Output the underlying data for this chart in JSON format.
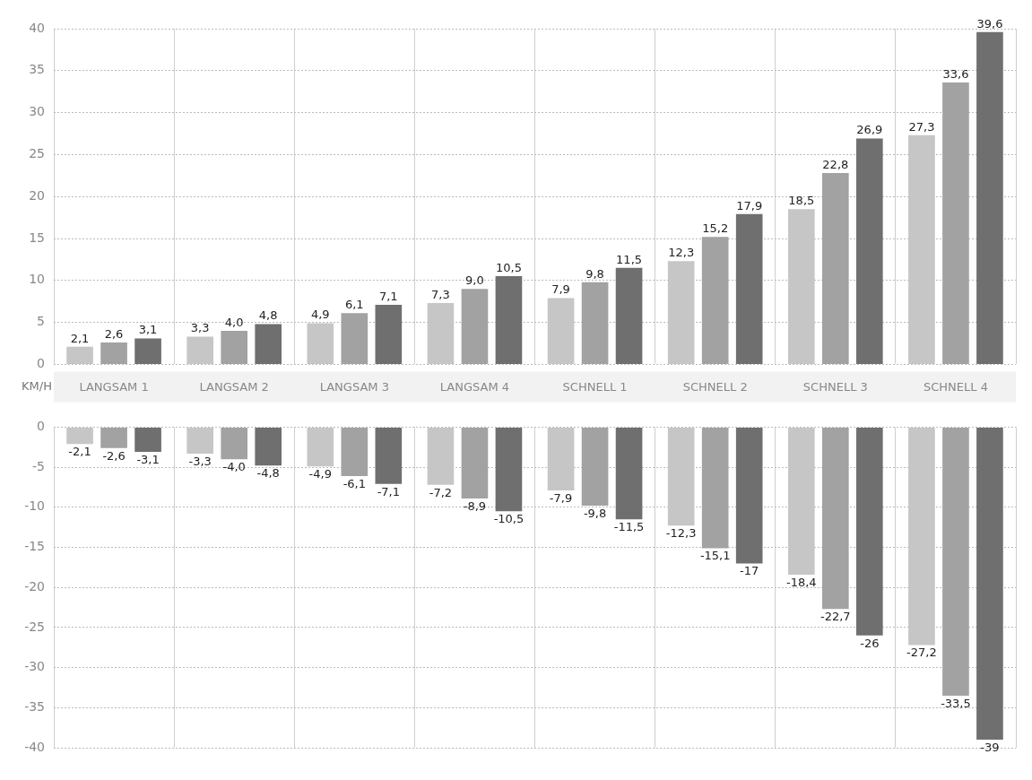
{
  "chart_data": [
    {
      "type": "bar",
      "ylabel": "KM/H",
      "categories": [
        "LANGSAM 1",
        "LANGSAM 2",
        "LANGSAM 3",
        "LANGSAM 4",
        "SCHNELL 1",
        "SCHNELL 2",
        "SCHNELL 3",
        "SCHNELL 4"
      ],
      "ylim": [
        0,
        40
      ],
      "yticks": [
        0,
        5,
        10,
        15,
        20,
        25,
        30,
        35,
        40
      ],
      "grid": true,
      "series": [
        {
          "color": "#c6c6c6",
          "values": [
            2.1,
            3.3,
            4.9,
            7.3,
            7.9,
            12.3,
            18.5,
            27.3
          ],
          "value_labels": [
            "2,1",
            "3,3",
            "4,9",
            "7,3",
            "7,9",
            "12,3",
            "18,5",
            "27,3"
          ]
        },
        {
          "color": "#a2a2a2",
          "values": [
            2.6,
            4.0,
            6.1,
            9.0,
            9.8,
            15.2,
            22.8,
            33.6
          ],
          "value_labels": [
            "2,6",
            "4,0",
            "6,1",
            "9,0",
            "9,8",
            "15,2",
            "22,8",
            "33,6"
          ]
        },
        {
          "color": "#6f6f6f",
          "values": [
            3.1,
            4.8,
            7.1,
            10.5,
            11.5,
            17.9,
            26.9,
            39.6
          ],
          "value_labels": [
            "3,1",
            "4,8",
            "7,1",
            "10,5",
            "11,5",
            "17,9",
            "26,9",
            "39,6"
          ]
        }
      ]
    },
    {
      "type": "bar",
      "categories": [
        null,
        null,
        null,
        null,
        null,
        null,
        null,
        null
      ],
      "ylim": [
        -40,
        0
      ],
      "yticks": [
        -40,
        -35,
        -30,
        -25,
        -20,
        -15,
        -10,
        -5,
        0
      ],
      "grid": true,
      "tick_labels": "y",
      "series": [
        {
          "color": "#c6c6c6",
          "values": [
            -2.1,
            -3.3,
            -4.9,
            -7.2,
            -7.9,
            -12.3,
            -18.4,
            -27.2
          ],
          "value_labels": [
            "-2,1",
            "-3,3",
            "-4,9",
            "-7,2",
            "-7,9",
            "-12,3",
            "-18,4",
            "-27,2"
          ]
        },
        {
          "color": "#a2a2a2",
          "values": [
            -2.6,
            -4.0,
            -6.1,
            -8.9,
            -9.8,
            -15.1,
            -22.7,
            -33.5
          ],
          "value_labels": [
            "-2,6",
            "-4,0",
            "-6,1",
            "-8,9",
            "-9,8",
            "-15,1",
            "-22,7",
            "-33,5"
          ]
        },
        {
          "color": "#6f6f6f",
          "values": [
            -3.1,
            -4.8,
            -7.1,
            -10.5,
            -11.5,
            -17,
            -26,
            -39
          ],
          "value_labels": [
            "-3,1",
            "-4,8",
            "-7,1",
            "-10,5",
            "-11,5",
            "-17",
            "-26",
            "-39"
          ]
        }
      ]
    }
  ]
}
